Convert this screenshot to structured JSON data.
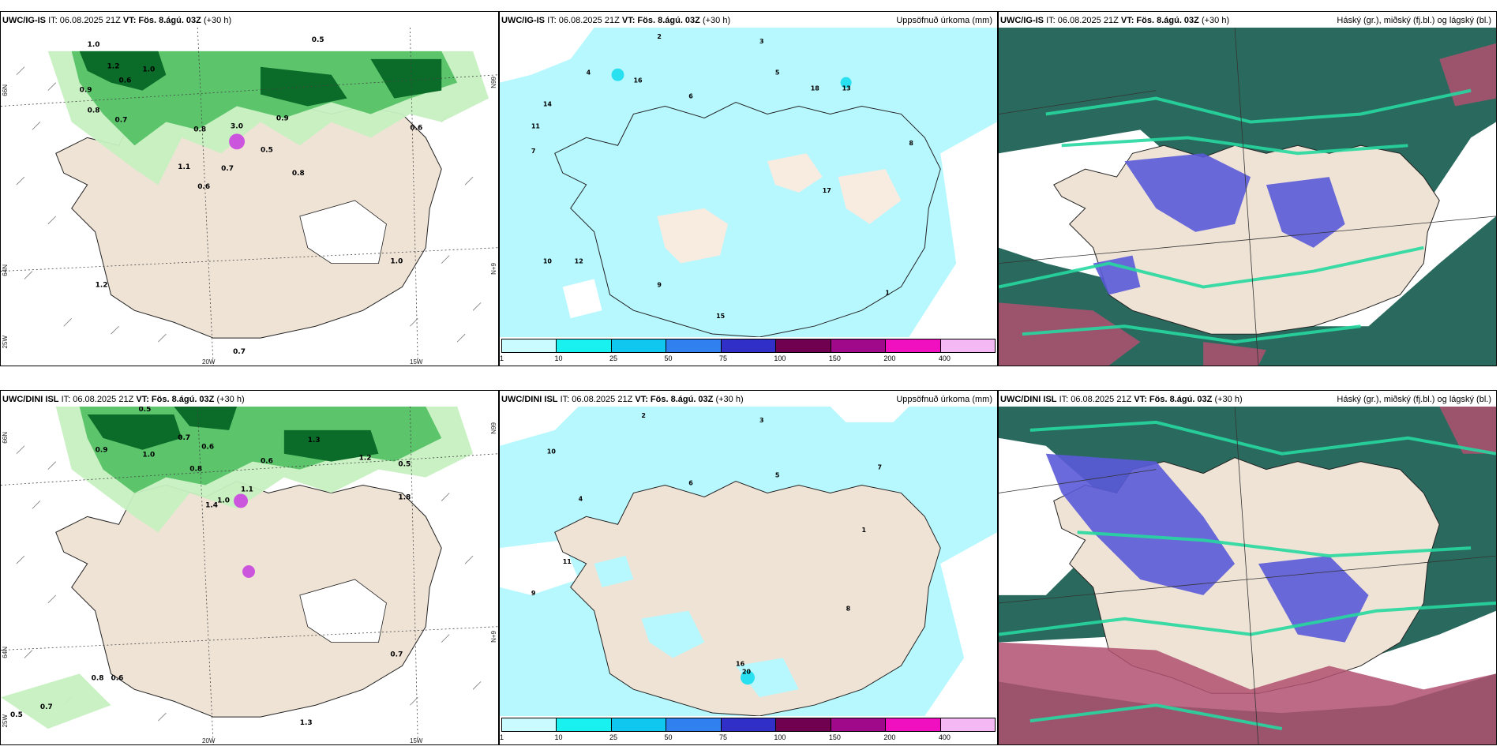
{
  "rows": [
    {
      "panels": [
        {
          "model": "UWC/IG-IS",
          "it_label": "IT: 06.08.2025 21Z",
          "vt_label": "VT: Fös. 8.ágú. 03Z",
          "lead": "(+30 h)",
          "product": "",
          "lon_labels": [
            "20W",
            "15W"
          ],
          "lat_labels": [
            "66N",
            "64N",
            "N99",
            "N+9"
          ],
          "corner_label": "25W",
          "precip_values": [
            "1.0",
            "1.2",
            "1.0",
            "0.9",
            "0.8",
            "0.7",
            "0.6",
            "0.5",
            "3.0",
            "0.8",
            "0.9",
            "1.1",
            "0.7",
            "0.6",
            "0.8",
            "0.5",
            "1.0",
            "1.2",
            "0.6",
            "0.7"
          ]
        },
        {
          "model": "UWC/IG-IS",
          "it_label": "IT: 06.08.2025 21Z",
          "vt_label": "VT: Fös. 8.ágú. 03Z",
          "lead": "(+30 h)",
          "product": "Uppsöfnuð úrkoma (mm)",
          "colorbar": [
            "1",
            "10",
            "25",
            "50",
            "75",
            "100",
            "150",
            "200",
            "400"
          ],
          "accum_values": [
            "2",
            "3",
            "4",
            "5",
            "6",
            "7",
            "14",
            "11",
            "16",
            "18",
            "13",
            "12",
            "10",
            "9",
            "17",
            "15",
            "8",
            "1"
          ]
        },
        {
          "model": "UWC/IG-IS",
          "it_label": "IT: 06.08.2025 21Z",
          "vt_label": "VT: Fös. 8.ágú. 03Z",
          "lead": "(+30 h)",
          "product": "Háský (gr.), miðský (fj.bl.) og lágský (bl.)"
        }
      ]
    },
    {
      "panels": [
        {
          "model": "UWC/DINI ISL",
          "it_label": "IT: 06.08.2025 21Z",
          "vt_label": "VT: Fös. 8.ágú. 03Z",
          "lead": "(+30 h)",
          "product": "",
          "lon_labels": [
            "20W",
            "15W"
          ],
          "lat_labels": [
            "66N",
            "64N",
            "N99",
            "N+9"
          ],
          "corner_label": "25W",
          "precip_values": [
            "0.5",
            "1.0",
            "0.7",
            "0.6",
            "0.9",
            "1.3",
            "0.8",
            "1.1",
            "0.6",
            "1.4",
            "1.2",
            "1.8",
            "0.5",
            "0.7",
            "0.8",
            "0.6",
            "1.0",
            "1.3",
            "0.7",
            "0.5"
          ]
        },
        {
          "model": "UWC/DINI ISL",
          "it_label": "IT: 06.08.2025 21Z",
          "vt_label": "VT: Fös. 8.ágú. 03Z",
          "lead": "(+30 h)",
          "product": "Uppsöfnuð úrkoma (mm)",
          "colorbar": [
            "1",
            "10",
            "25",
            "50",
            "75",
            "100",
            "150",
            "200",
            "400"
          ],
          "accum_values": [
            "2",
            "3",
            "4",
            "5",
            "6",
            "1",
            "10",
            "9",
            "11",
            "7",
            "8",
            "16",
            "20"
          ]
        },
        {
          "model": "UWC/DINI ISL",
          "it_label": "IT: 06.08.2025 21Z",
          "vt_label": "VT: Fös. 8.ágú. 03Z",
          "lead": "(+30 h)",
          "product": "Háský (gr.), miðský (fj.bl.) og lágský (bl.)"
        }
      ]
    }
  ],
  "colors": {
    "land": "#efe3d6",
    "sea": "#ffffff",
    "precip_light": "#c6f0c0",
    "precip_mid": "#5cc46b",
    "precip_dark": "#0b6b28",
    "precip_max": "#cc55dd",
    "accum_cyan": "#b7f8ff",
    "accum_mid": "#28e0f0",
    "cloud_high": "#1a6b5a",
    "cloud_mid": "#5a5ad8",
    "cloud_low": "#b05070",
    "cloud_edge": "#26d8a0",
    "colorbar": [
      "#c9fbff",
      "#19f0f0",
      "#10c8ef",
      "#3080f0",
      "#3030c8",
      "#700050",
      "#a00a8a",
      "#f010c0",
      "#f4b8f4"
    ]
  }
}
